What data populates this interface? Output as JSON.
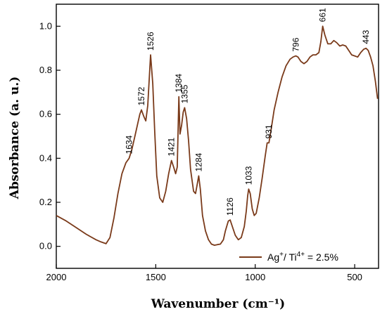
{
  "chart_data": {
    "type": "line",
    "xlabel": "Wavenumber (cm⁻¹)",
    "ylabel": "Absorbance (a. u.)",
    "xlim": [
      2000,
      380
    ],
    "ylim": [
      -0.1,
      1.1
    ],
    "x_reversed": true,
    "x_ticks": [
      "2000",
      "1500",
      "1000",
      "500"
    ],
    "x_tick_values": [
      2000,
      1500,
      1000,
      500
    ],
    "y_ticks": [
      "0.0",
      "0.2",
      "0.4",
      "0.6",
      "0.8",
      "1.0"
    ],
    "y_tick_values": [
      0.0,
      0.2,
      0.4,
      0.6,
      0.8,
      1.0
    ],
    "legend": {
      "base": "Ag",
      "sup1": "+",
      "mid": "/  Ti",
      "sup2": "4+",
      "tail": " = 2.5%"
    },
    "line_color": "#7a3a1a",
    "series": [
      {
        "x": [
          2000,
          1950,
          1900,
          1850,
          1800,
          1775,
          1750,
          1730,
          1710,
          1690,
          1670,
          1650,
          1634,
          1620,
          1605,
          1590,
          1580,
          1572,
          1560,
          1550,
          1540,
          1526,
          1515,
          1505,
          1495,
          1480,
          1465,
          1450,
          1435,
          1421,
          1410,
          1400,
          1392,
          1384,
          1378,
          1370,
          1362,
          1355,
          1345,
          1335,
          1325,
          1310,
          1300,
          1292,
          1284,
          1276,
          1265,
          1250,
          1235,
          1220,
          1205,
          1190,
          1175,
          1160,
          1150,
          1140,
          1135,
          1126,
          1115,
          1100,
          1085,
          1070,
          1055,
          1045,
          1038,
          1033,
          1025,
          1015,
          1005,
          995,
          980,
          965,
          950,
          940,
          931,
          920,
          905,
          885,
          865,
          845,
          825,
          810,
          796,
          785,
          770,
          755,
          740,
          725,
          710,
          695,
          680,
          670,
          661,
          650,
          635,
          620,
          605,
          590,
          575,
          560,
          545,
          530,
          515,
          500,
          485,
          470,
          455,
          443,
          432,
          420,
          408,
          396,
          385
        ],
        "y": [
          0.14,
          0.115,
          0.085,
          0.055,
          0.03,
          0.02,
          0.012,
          0.04,
          0.13,
          0.24,
          0.33,
          0.38,
          0.4,
          0.44,
          0.5,
          0.56,
          0.6,
          0.62,
          0.59,
          0.57,
          0.64,
          0.87,
          0.74,
          0.52,
          0.32,
          0.22,
          0.2,
          0.25,
          0.33,
          0.39,
          0.36,
          0.33,
          0.36,
          0.68,
          0.51,
          0.55,
          0.61,
          0.63,
          0.58,
          0.48,
          0.35,
          0.25,
          0.24,
          0.28,
          0.32,
          0.26,
          0.14,
          0.07,
          0.03,
          0.01,
          0.005,
          0.008,
          0.01,
          0.03,
          0.07,
          0.1,
          0.115,
          0.12,
          0.09,
          0.05,
          0.03,
          0.04,
          0.09,
          0.16,
          0.23,
          0.26,
          0.24,
          0.17,
          0.14,
          0.15,
          0.22,
          0.31,
          0.41,
          0.47,
          0.47,
          0.53,
          0.62,
          0.7,
          0.77,
          0.82,
          0.85,
          0.86,
          0.865,
          0.86,
          0.84,
          0.83,
          0.84,
          0.86,
          0.87,
          0.87,
          0.88,
          0.93,
          1.0,
          0.96,
          0.92,
          0.92,
          0.935,
          0.925,
          0.91,
          0.915,
          0.91,
          0.89,
          0.87,
          0.865,
          0.86,
          0.88,
          0.895,
          0.9,
          0.89,
          0.86,
          0.82,
          0.75,
          0.67
        ]
      }
    ],
    "peak_labels": [
      {
        "label": "1634",
        "x": 1634,
        "y": 0.4
      },
      {
        "label": "1572",
        "x": 1572,
        "y": 0.62
      },
      {
        "label": "1526",
        "x": 1526,
        "y": 0.87
      },
      {
        "label": "1421",
        "x": 1421,
        "y": 0.39
      },
      {
        "label": "1384",
        "x": 1384,
        "y": 0.68
      },
      {
        "label": "1355",
        "x": 1355,
        "y": 0.63
      },
      {
        "label": "1284",
        "x": 1284,
        "y": 0.32
      },
      {
        "label": "1126",
        "x": 1126,
        "y": 0.12
      },
      {
        "label": "1033",
        "x": 1033,
        "y": 0.26
      },
      {
        "label": "931",
        "x": 931,
        "y": 0.47
      },
      {
        "label": "796",
        "x": 796,
        "y": 0.865
      },
      {
        "label": "661",
        "x": 661,
        "y": 1.0
      },
      {
        "label": "443",
        "x": 443,
        "y": 0.9
      }
    ]
  }
}
